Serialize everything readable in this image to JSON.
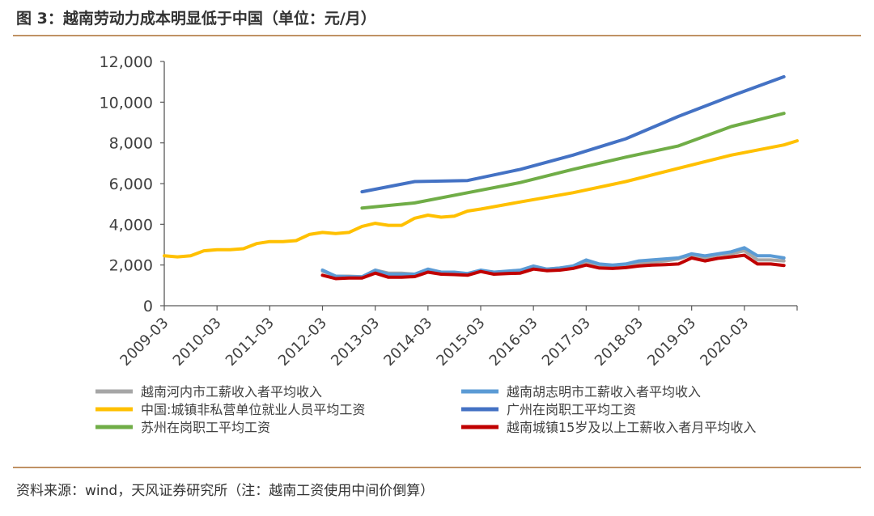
{
  "title": "图 3：越南劳动力成本明显低于中国（单位：元/月）",
  "source": "资料来源：wind，天风证券研究所（注：越南工资使用中间价倒算）",
  "colors": {
    "axis": "#595959",
    "text": "#404040",
    "hanoi": "#a6a6a6",
    "hcmc": "#5b9bd5",
    "china": "#ffc000",
    "guangzhou": "#4472c4",
    "suzhou": "#70ad47",
    "vn_urban": "#c00000"
  },
  "chart_data": {
    "type": "line",
    "title": "",
    "xlabel": "",
    "ylabel": "",
    "ylim": [
      0,
      12000
    ],
    "yticks": [
      0,
      2000,
      4000,
      6000,
      8000,
      10000,
      12000
    ],
    "ytick_labels": [
      "0",
      "2,000",
      "4,000",
      "6,000",
      "8,000",
      "10,000",
      "12,000"
    ],
    "xlim": [
      "2009-03",
      "2021-03"
    ],
    "xtick_labels": [
      "2009-03",
      "2010-03",
      "2011-03",
      "2012-03",
      "2013-03",
      "2014-03",
      "2015-03",
      "2016-03",
      "2017-03",
      "2018-03",
      "2019-03",
      "2020-03"
    ],
    "grid": false,
    "legend_position": "bottom",
    "series": [
      {
        "name": "越南河内市工薪收入者平均收入",
        "color_key": "hanoi",
        "points": [
          [
            "2012-03",
            1700
          ],
          [
            "2012-06",
            1450
          ],
          [
            "2012-09",
            1450
          ],
          [
            "2012-12",
            1420
          ],
          [
            "2013-03",
            1750
          ],
          [
            "2013-06",
            1600
          ],
          [
            "2013-09",
            1600
          ],
          [
            "2013-12",
            1550
          ],
          [
            "2014-03",
            1750
          ],
          [
            "2014-06",
            1650
          ],
          [
            "2014-09",
            1620
          ],
          [
            "2014-12",
            1580
          ],
          [
            "2015-03",
            1700
          ],
          [
            "2015-06",
            1650
          ],
          [
            "2015-09",
            1650
          ],
          [
            "2015-12",
            1650
          ],
          [
            "2016-03",
            1850
          ],
          [
            "2016-06",
            1800
          ],
          [
            "2016-09",
            1850
          ],
          [
            "2016-12",
            1900
          ],
          [
            "2017-03",
            2150
          ],
          [
            "2017-06",
            2000
          ],
          [
            "2017-09",
            1950
          ],
          [
            "2017-12",
            2000
          ],
          [
            "2018-03",
            2100
          ],
          [
            "2018-06",
            2150
          ],
          [
            "2018-09",
            2200
          ],
          [
            "2018-12",
            2300
          ],
          [
            "2019-03",
            2500
          ],
          [
            "2019-06",
            2350
          ],
          [
            "2019-09",
            2500
          ],
          [
            "2019-12",
            2550
          ],
          [
            "2020-03",
            2700
          ],
          [
            "2020-06",
            2250
          ],
          [
            "2020-09",
            2250
          ],
          [
            "2020-12",
            2200
          ]
        ]
      },
      {
        "name": "越南胡志明市工薪收入者平均收入",
        "color_key": "hcmc",
        "points": [
          [
            "2012-03",
            1750
          ],
          [
            "2012-06",
            1450
          ],
          [
            "2012-09",
            1430
          ],
          [
            "2012-12",
            1420
          ],
          [
            "2013-03",
            1750
          ],
          [
            "2013-06",
            1550
          ],
          [
            "2013-09",
            1550
          ],
          [
            "2013-12",
            1550
          ],
          [
            "2014-03",
            1800
          ],
          [
            "2014-06",
            1650
          ],
          [
            "2014-09",
            1650
          ],
          [
            "2014-12",
            1580
          ],
          [
            "2015-03",
            1750
          ],
          [
            "2015-06",
            1650
          ],
          [
            "2015-09",
            1700
          ],
          [
            "2015-12",
            1750
          ],
          [
            "2016-03",
            1950
          ],
          [
            "2016-06",
            1800
          ],
          [
            "2016-09",
            1850
          ],
          [
            "2016-12",
            1950
          ],
          [
            "2017-03",
            2250
          ],
          [
            "2017-06",
            2050
          ],
          [
            "2017-09",
            2000
          ],
          [
            "2017-12",
            2050
          ],
          [
            "2018-03",
            2200
          ],
          [
            "2018-06",
            2250
          ],
          [
            "2018-09",
            2300
          ],
          [
            "2018-12",
            2350
          ],
          [
            "2019-03",
            2550
          ],
          [
            "2019-06",
            2450
          ],
          [
            "2019-09",
            2550
          ],
          [
            "2019-12",
            2650
          ],
          [
            "2020-03",
            2850
          ],
          [
            "2020-06",
            2450
          ],
          [
            "2020-09",
            2450
          ],
          [
            "2020-12",
            2350
          ]
        ]
      },
      {
        "name": "中国:城镇非私营单位就业人员平均工资",
        "color_key": "china",
        "points": [
          [
            "2009-03",
            2450
          ],
          [
            "2009-06",
            2400
          ],
          [
            "2009-09",
            2450
          ],
          [
            "2009-12",
            2700
          ],
          [
            "2010-03",
            2750
          ],
          [
            "2010-06",
            2750
          ],
          [
            "2010-09",
            2800
          ],
          [
            "2010-12",
            3050
          ],
          [
            "2011-03",
            3150
          ],
          [
            "2011-06",
            3150
          ],
          [
            "2011-09",
            3200
          ],
          [
            "2011-12",
            3500
          ],
          [
            "2012-03",
            3600
          ],
          [
            "2012-06",
            3550
          ],
          [
            "2012-09",
            3600
          ],
          [
            "2012-12",
            3900
          ],
          [
            "2013-03",
            4050
          ],
          [
            "2013-06",
            3950
          ],
          [
            "2013-09",
            3950
          ],
          [
            "2013-12",
            4300
          ],
          [
            "2014-03",
            4450
          ],
          [
            "2014-06",
            4350
          ],
          [
            "2014-09",
            4400
          ],
          [
            "2014-12",
            4650
          ],
          [
            "2015-03",
            4750
          ],
          [
            "2015-12",
            5100
          ],
          [
            "2016-12",
            5550
          ],
          [
            "2017-12",
            6100
          ],
          [
            "2018-12",
            6750
          ],
          [
            "2019-12",
            7400
          ],
          [
            "2020-12",
            7900
          ],
          [
            "2021-03",
            8100
          ]
        ]
      },
      {
        "name": "广州在岗职工平均工资",
        "color_key": "guangzhou",
        "points": [
          [
            "2012-12",
            5600
          ],
          [
            "2013-12",
            6100
          ],
          [
            "2014-12",
            6150
          ],
          [
            "2015-12",
            6700
          ],
          [
            "2016-12",
            7400
          ],
          [
            "2017-12",
            8200
          ],
          [
            "2018-12",
            9300
          ],
          [
            "2019-12",
            10300
          ],
          [
            "2020-12",
            11250
          ]
        ]
      },
      {
        "name": "苏州在岗职工平均工资",
        "color_key": "suzhou",
        "points": [
          [
            "2012-12",
            4800
          ],
          [
            "2013-12",
            5050
          ],
          [
            "2014-12",
            5550
          ],
          [
            "2015-12",
            6050
          ],
          [
            "2016-12",
            6700
          ],
          [
            "2017-12",
            7300
          ],
          [
            "2018-12",
            7850
          ],
          [
            "2019-12",
            8800
          ],
          [
            "2020-12",
            9450
          ]
        ]
      },
      {
        "name": "越南城镇15岁及以上工薪收入者月平均收入",
        "color_key": "vn_urban",
        "points": [
          [
            "2012-03",
            1500
          ],
          [
            "2012-06",
            1330
          ],
          [
            "2012-09",
            1360
          ],
          [
            "2012-12",
            1360
          ],
          [
            "2013-03",
            1600
          ],
          [
            "2013-06",
            1400
          ],
          [
            "2013-09",
            1400
          ],
          [
            "2013-12",
            1430
          ],
          [
            "2014-03",
            1650
          ],
          [
            "2014-06",
            1550
          ],
          [
            "2014-09",
            1530
          ],
          [
            "2014-12",
            1500
          ],
          [
            "2015-03",
            1680
          ],
          [
            "2015-06",
            1550
          ],
          [
            "2015-09",
            1580
          ],
          [
            "2015-12",
            1600
          ],
          [
            "2016-03",
            1800
          ],
          [
            "2016-06",
            1720
          ],
          [
            "2016-09",
            1750
          ],
          [
            "2016-12",
            1830
          ],
          [
            "2017-03",
            2000
          ],
          [
            "2017-06",
            1850
          ],
          [
            "2017-09",
            1830
          ],
          [
            "2017-12",
            1870
          ],
          [
            "2018-03",
            1950
          ],
          [
            "2018-06",
            2000
          ],
          [
            "2018-09",
            2020
          ],
          [
            "2018-12",
            2050
          ],
          [
            "2019-03",
            2350
          ],
          [
            "2019-06",
            2200
          ],
          [
            "2019-09",
            2330
          ],
          [
            "2019-12",
            2400
          ],
          [
            "2020-03",
            2480
          ],
          [
            "2020-06",
            2050
          ],
          [
            "2020-09",
            2050
          ],
          [
            "2020-12",
            1980
          ]
        ]
      }
    ]
  }
}
